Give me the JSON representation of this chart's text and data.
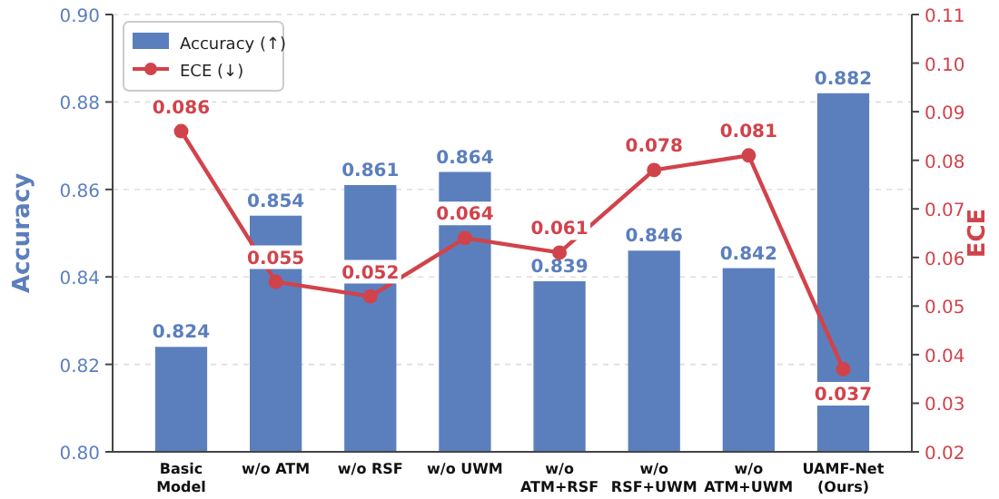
{
  "chart_data": {
    "type": "bar",
    "categories": [
      "Basic\nModel",
      "w/o ATM",
      "w/o RSF",
      "w/o UWM",
      "w/o\nATM+RSF",
      "w/o\nRSF+UWM",
      "w/o\nATM+UWM",
      "UAMF-Net\n(Ours)"
    ],
    "series": [
      {
        "name": "Accuracy (↑)",
        "color": "#5b7fbd",
        "values": [
          0.824,
          0.854,
          0.861,
          0.864,
          0.839,
          0.846,
          0.842,
          0.882
        ]
      },
      {
        "name": "ECE (↓)",
        "type": "line",
        "axis": "y2",
        "color": "#d1434b",
        "marker": "circle",
        "values": [
          0.086,
          0.055,
          0.052,
          0.064,
          0.061,
          0.078,
          0.081,
          0.037
        ]
      }
    ],
    "ylabel": "Accuracy",
    "y2label": "ECE",
    "ylim": [
      0.8,
      0.9
    ],
    "yticks": [
      {
        "value": 0.8,
        "label": "0.80"
      },
      0.82,
      0.84,
      0.86,
      0.88,
      {
        "value": 0.9,
        "label": "0.90"
      }
    ],
    "y2lim": [
      0.02,
      0.11
    ],
    "y2ticks": [
      0.02,
      0.03,
      0.04,
      0.05,
      0.06,
      0.07,
      0.08,
      0.09,
      {
        "value": 0.1,
        "label": "0.10"
      },
      0.11
    ],
    "grid": "y",
    "legend": "top left",
    "data_labels": true
  }
}
